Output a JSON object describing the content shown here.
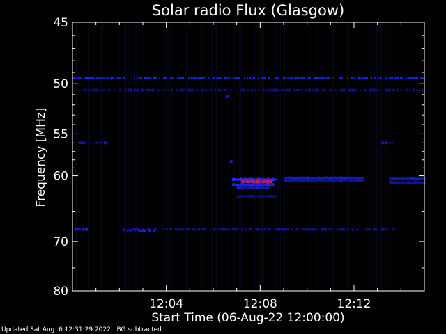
{
  "chart_data": {
    "type": "heatmap",
    "title": "Solar radio Flux (Glasgow)",
    "xlabel": "Start Time (06-Aug-22 12:00:00)",
    "ylabel": "Frequency [MHz]",
    "x_unit": "minutes after 12:00:00",
    "xlim": [
      0,
      15
    ],
    "ylim": [
      80,
      45
    ],
    "y_scale": "reciprocal",
    "x_ticks": [
      {
        "value": 4,
        "label": "12:04"
      },
      {
        "value": 8,
        "label": "12:08"
      },
      {
        "value": 12,
        "label": "12:12"
      }
    ],
    "y_ticks": [
      {
        "value": 45,
        "label": "45"
      },
      {
        "value": 50,
        "label": "50"
      },
      {
        "value": 55,
        "label": "55"
      },
      {
        "value": 60,
        "label": "60"
      },
      {
        "value": 70,
        "label": "70"
      },
      {
        "value": 80,
        "label": "80"
      }
    ],
    "features": [
      {
        "kind": "interference-band",
        "freq": 49.5,
        "t_start": 0.0,
        "t_end": 15.0,
        "intensity": 0.55
      },
      {
        "kind": "interference-band",
        "freq": 50.6,
        "t_start": 0.4,
        "t_end": 15.0,
        "intensity": 0.3
      },
      {
        "kind": "interference-band",
        "freq": 56.0,
        "t_start": 0.2,
        "t_end": 1.5,
        "intensity": 0.45
      },
      {
        "kind": "interference-band",
        "freq": 56.0,
        "t_start": 13.1,
        "t_end": 13.8,
        "intensity": 0.4
      },
      {
        "kind": "interference-band",
        "freq": 67.9,
        "t_start": 0.0,
        "t_end": 0.6,
        "intensity": 0.55
      },
      {
        "kind": "interference-band",
        "freq": 67.9,
        "t_start": 2.1,
        "t_end": 13.8,
        "intensity": 0.35
      },
      {
        "kind": "interference-band",
        "freq": 68.1,
        "t_start": 2.2,
        "t_end": 3.6,
        "intensity": 0.6
      },
      {
        "kind": "emission",
        "freq": 60.5,
        "t_start": 6.8,
        "t_end": 8.7,
        "intensity": 0.75
      },
      {
        "kind": "emission",
        "freq": 60.8,
        "t_start": 7.2,
        "t_end": 8.5,
        "intensity": 1.0
      },
      {
        "kind": "emission",
        "freq": 61.2,
        "t_start": 6.8,
        "t_end": 8.6,
        "intensity": 0.6
      },
      {
        "kind": "emission",
        "freq": 61.6,
        "t_start": 7.0,
        "t_end": 8.4,
        "intensity": 0.45
      },
      {
        "kind": "emission",
        "freq": 58.2,
        "t_start": 6.7,
        "t_end": 6.8,
        "intensity": 0.6
      },
      {
        "kind": "emission",
        "freq": 60.3,
        "t_start": 9.0,
        "t_end": 12.4,
        "intensity": 0.45
      },
      {
        "kind": "emission",
        "freq": 60.6,
        "t_start": 9.0,
        "t_end": 12.4,
        "intensity": 0.35
      },
      {
        "kind": "emission",
        "freq": 60.4,
        "t_start": 13.5,
        "t_end": 15.0,
        "intensity": 0.4
      },
      {
        "kind": "emission",
        "freq": 60.9,
        "t_start": 13.5,
        "t_end": 15.0,
        "intensity": 0.35
      },
      {
        "kind": "emission",
        "freq": 62.8,
        "t_start": 7.0,
        "t_end": 8.7,
        "intensity": 0.25
      },
      {
        "kind": "emission",
        "freq": 51.2,
        "t_start": 6.55,
        "t_end": 6.65,
        "intensity": 0.5
      }
    ],
    "colors": {
      "background": "#000000",
      "low": "#000033",
      "mid": "#1d2bff",
      "high": "#ff1a1a",
      "axes": "#ffffff"
    },
    "grid": false,
    "legend": "none"
  },
  "footer": {
    "updated": "Updated Sat Aug  6 12:31:29 2022",
    "note": "BG subtracted"
  }
}
